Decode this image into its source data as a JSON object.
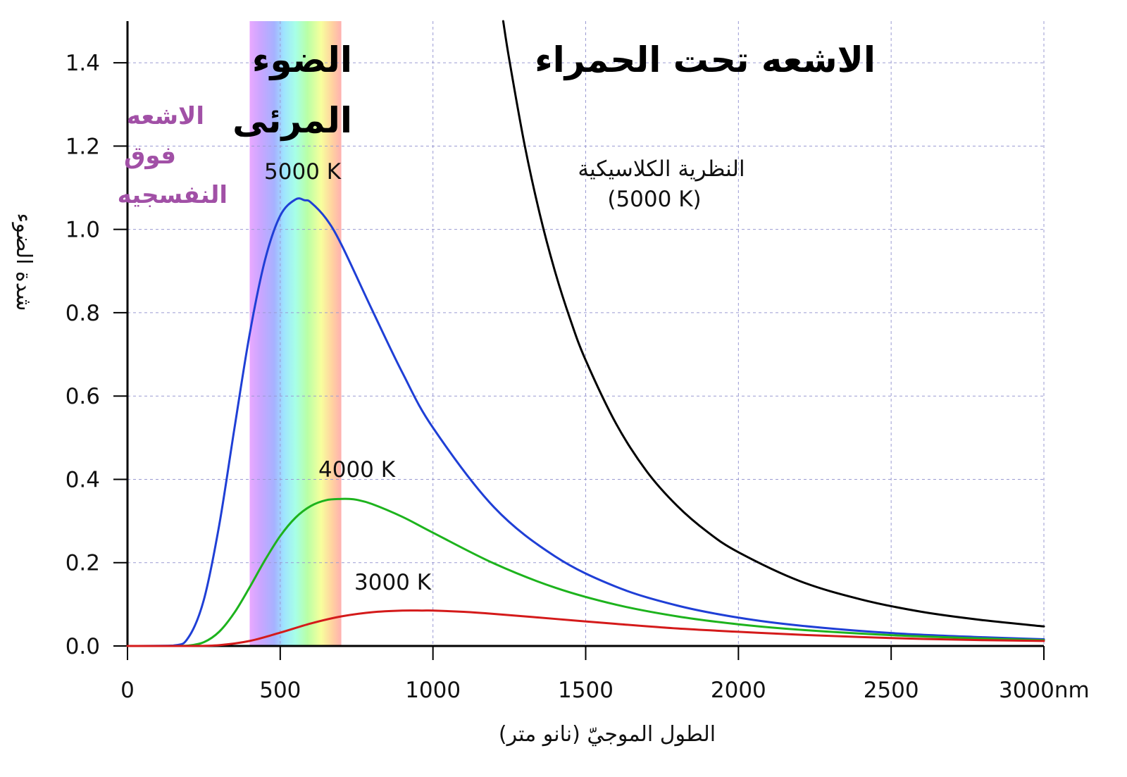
{
  "chart_data": {
    "type": "line",
    "xlabel": "الطول الموجيّ (نانو متر)",
    "ylabel": "شدة الضوء",
    "x_unit_suffix": "nm",
    "xlim": [
      0,
      3000
    ],
    "ylim": [
      0,
      1.5
    ],
    "xticks": [
      "0",
      "500",
      "1000",
      "1500",
      "2000",
      "2500",
      "3000nm"
    ],
    "yticks": [
      "0.0",
      "0.2",
      "0.4",
      "0.6",
      "0.8",
      "1.0",
      "1.2",
      "1.4"
    ],
    "grid": true,
    "visible_band": {
      "from": 400,
      "to": 700
    },
    "regions": {
      "ultraviolet": [
        "الاشعه",
        "فوق",
        "النفسجيه"
      ],
      "visible": [
        "الضوء",
        "المرئى"
      ],
      "infrared": "الاشعه تحت الحمراء"
    },
    "series": [
      {
        "name": "5000 K",
        "color": "#1f3fd6",
        "x": [
          0,
          150,
          200,
          250,
          300,
          350,
          400,
          450,
          500,
          550,
          580,
          600,
          650,
          700,
          800,
          900,
          1000,
          1200,
          1400,
          1600,
          1800,
          2000,
          2200,
          2500,
          2800,
          3000
        ],
        "y": [
          0,
          0.001,
          0.021,
          0.111,
          0.289,
          0.522,
          0.749,
          0.926,
          1.033,
          1.072,
          1.07,
          1.065,
          1.026,
          0.964,
          0.808,
          0.656,
          0.524,
          0.333,
          0.215,
          0.142,
          0.097,
          0.068,
          0.049,
          0.031,
          0.021,
          0.016
        ]
      },
      {
        "name": "4000 K",
        "color": "#1db31d",
        "x": [
          0,
          150,
          200,
          250,
          300,
          350,
          400,
          450,
          500,
          550,
          600,
          650,
          700,
          725,
          750,
          800,
          900,
          1000,
          1200,
          1400,
          1600,
          1800,
          2000,
          2200,
          2500,
          2800,
          3000
        ],
        "y": [
          0,
          0,
          0.001,
          0.009,
          0.034,
          0.08,
          0.141,
          0.206,
          0.264,
          0.308,
          0.336,
          0.35,
          0.353,
          0.353,
          0.351,
          0.341,
          0.31,
          0.272,
          0.198,
          0.14,
          0.099,
          0.071,
          0.052,
          0.039,
          0.026,
          0.018,
          0.014
        ]
      },
      {
        "name": "3000 K",
        "color": "#d41a1a",
        "x": [
          0,
          200,
          300,
          400,
          500,
          600,
          700,
          800,
          900,
          966,
          1000,
          1100,
          1200,
          1400,
          1600,
          1800,
          2000,
          2200,
          2500,
          2800,
          3000
        ],
        "y": [
          0,
          0,
          0.002,
          0.012,
          0.032,
          0.054,
          0.071,
          0.081,
          0.085,
          0.085,
          0.085,
          0.082,
          0.077,
          0.065,
          0.053,
          0.042,
          0.034,
          0.027,
          0.019,
          0.014,
          0.012
        ]
      },
      {
        "name": "النظرية الكلاسيكية",
        "sublabel": "(5000 K)",
        "color": "#000000",
        "x": [
          1230,
          1250,
          1300,
          1350,
          1400,
          1450,
          1500,
          1600,
          1700,
          1800,
          1900,
          2000,
          2200,
          2400,
          2600,
          2800,
          3000
        ],
        "y": [
          1.5,
          1.407,
          1.203,
          1.036,
          0.898,
          0.783,
          0.686,
          0.533,
          0.419,
          0.336,
          0.273,
          0.225,
          0.156,
          0.112,
          0.082,
          0.062,
          0.047
        ]
      }
    ]
  }
}
